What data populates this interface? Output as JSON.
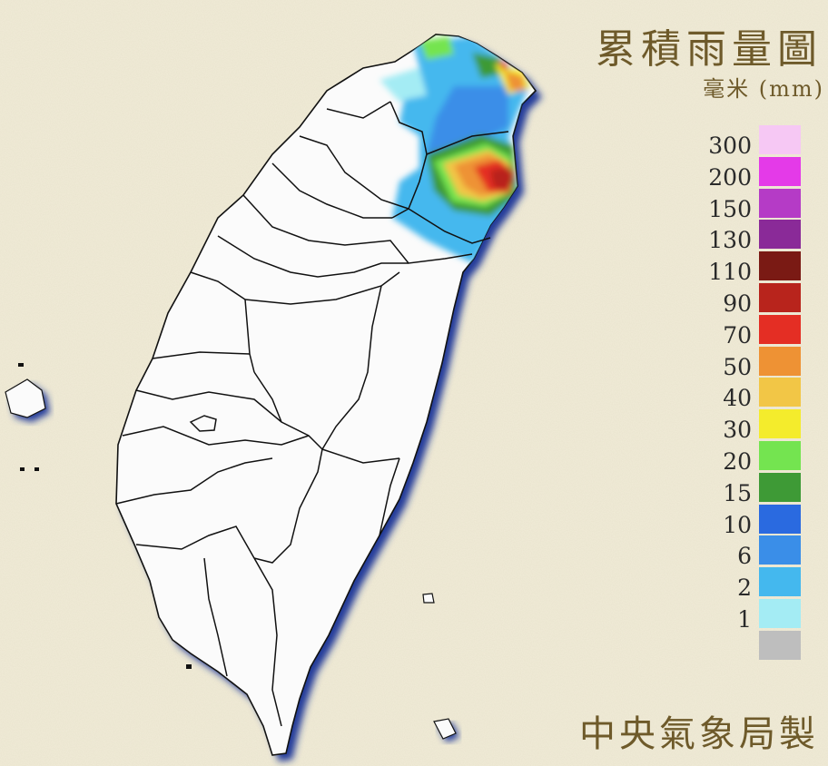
{
  "map": {
    "title": "累積雨量圖",
    "unit_label": "毫米 (mm)",
    "credit": "中央氣象局製",
    "background_color": "#f1ecd8",
    "land_color": "#fbfbfb",
    "shadow_color": "#233a9a",
    "legend": [
      {
        "label": "300",
        "color": "#f6c8f4"
      },
      {
        "label": "200",
        "color": "#e43ae8"
      },
      {
        "label": "150",
        "color": "#b53bc6"
      },
      {
        "label": "130",
        "color": "#8a2a98"
      },
      {
        "label": "110",
        "color": "#7a1a14"
      },
      {
        "label": "90",
        "color": "#b8241c"
      },
      {
        "label": "70",
        "color": "#e42e24"
      },
      {
        "label": "50",
        "color": "#ee9234"
      },
      {
        "label": "40",
        "color": "#f2c646"
      },
      {
        "label": "30",
        "color": "#f4ec2c"
      },
      {
        "label": "20",
        "color": "#74e450"
      },
      {
        "label": "15",
        "color": "#3e9a36"
      },
      {
        "label": "10",
        "color": "#2a6ae0"
      },
      {
        "label": "6",
        "color": "#3a8ee8"
      },
      {
        "label": "2",
        "color": "#44b8ee"
      },
      {
        "label": "1",
        "color": "#a4ecf4"
      },
      {
        "label": "",
        "color": "#bebebe"
      }
    ]
  }
}
